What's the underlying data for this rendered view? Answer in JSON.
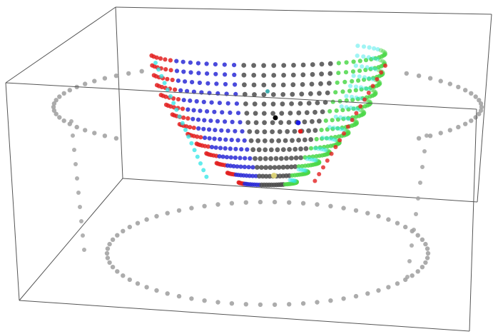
{
  "figure": {
    "type": "3d point cloud",
    "segments": [
      {
        "name": "cyan",
        "color": "#2fe6e6"
      },
      {
        "name": "green",
        "color": "#4dd84a"
      },
      {
        "name": "gray",
        "color": "#4d4d4d"
      },
      {
        "name": "blue",
        "color": "#2a2ad6"
      },
      {
        "name": "red",
        "color": "#e32121"
      }
    ],
    "markers": [
      {
        "name": "black",
        "color": "#000000"
      },
      {
        "name": "blue",
        "color": "#1a1ae6"
      },
      {
        "name": "red",
        "color": "#e61a1a"
      },
      {
        "name": "teal",
        "color": "#2aa6a6"
      },
      {
        "name": "yellow",
        "color": "#e0d77a"
      }
    ],
    "projection_color": "#a3a3a3",
    "box_color": "#555555"
  }
}
